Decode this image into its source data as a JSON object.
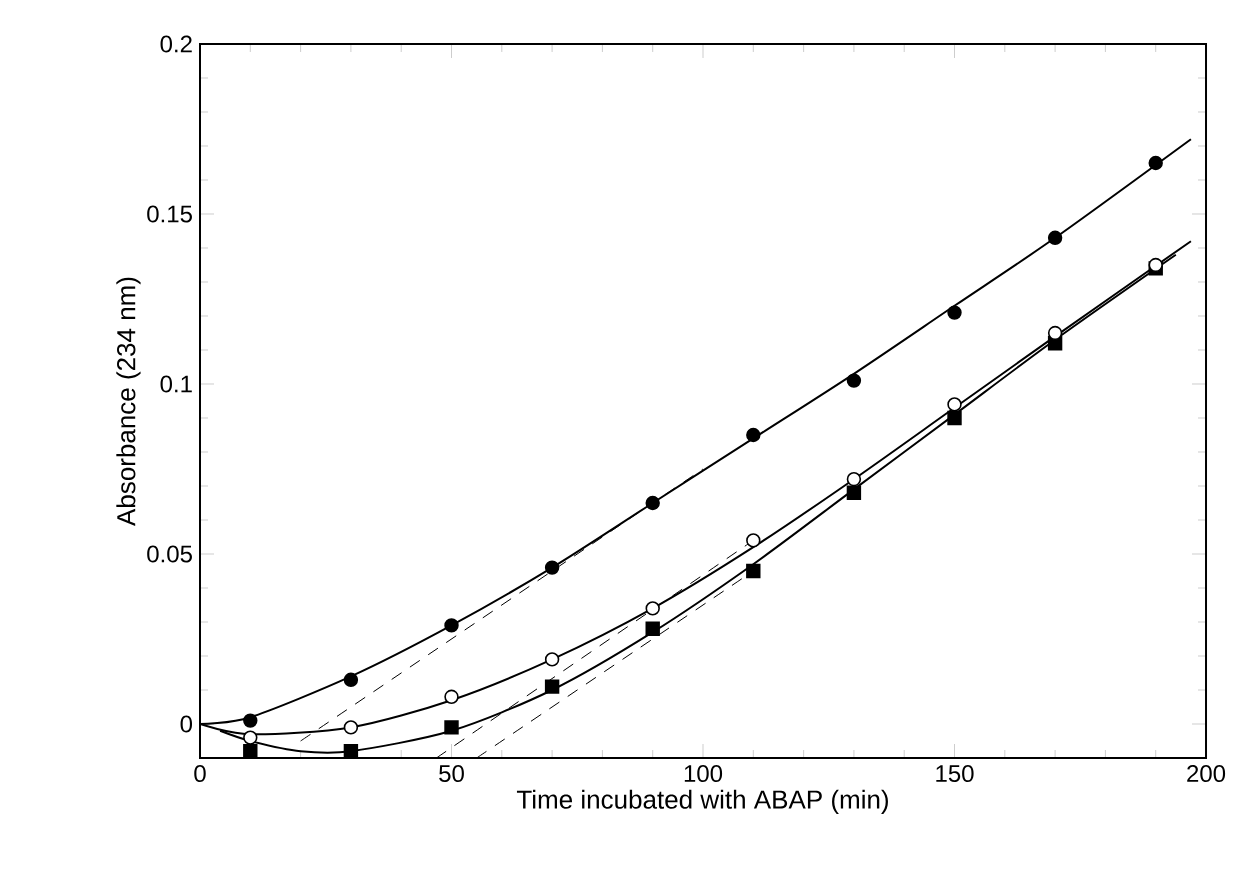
{
  "chart_data": {
    "type": "scatter",
    "xlabel": "Time incubated with ABAP (min)",
    "ylabel": "Absorbance (234 nm)",
    "xlim": [
      0,
      200
    ],
    "ylim": [
      -0.01,
      0.2
    ],
    "xticks": [
      0,
      50,
      100,
      150,
      200
    ],
    "yticks": [
      0,
      0.05,
      0.1,
      0.15,
      0.2
    ],
    "grid": false,
    "series": [
      {
        "marker": "circle",
        "color": "#000000",
        "x": [
          10,
          30,
          50,
          70,
          90,
          110,
          130,
          150,
          170,
          190
        ],
        "values": [
          0.001,
          0.013,
          0.029,
          0.046,
          0.065,
          0.085,
          0.101,
          0.121,
          0.143,
          0.165
        ]
      },
      {
        "marker": "circle",
        "color": "#ffffff",
        "x": [
          10,
          30,
          50,
          70,
          90,
          110,
          130,
          150,
          170,
          190
        ],
        "values": [
          -0.004,
          -0.001,
          0.008,
          0.019,
          0.034,
          0.054,
          0.072,
          0.094,
          0.115,
          0.135
        ]
      },
      {
        "marker": "square",
        "color": "#000000",
        "x": [
          10,
          30,
          50,
          70,
          90,
          110,
          130,
          150,
          170,
          190
        ],
        "values": [
          -0.008,
          -0.008,
          -0.001,
          0.011,
          0.028,
          0.045,
          0.068,
          0.09,
          0.112,
          0.134
        ]
      },
      {
        "type": "line",
        "marker": "none",
        "line_style": "solid",
        "color": "#000000",
        "x": [
          0,
          10,
          30,
          50,
          70,
          90,
          110,
          130,
          150,
          170,
          197
        ],
        "values": [
          0.0,
          0.002,
          0.014,
          0.029,
          0.046,
          0.065,
          0.084,
          0.103,
          0.123,
          0.143,
          0.172
        ]
      },
      {
        "type": "line",
        "marker": "none",
        "line_style": "solid",
        "color": "#000000",
        "x": [
          0,
          10,
          30,
          50,
          70,
          90,
          110,
          130,
          150,
          170,
          197
        ],
        "values": [
          0.0,
          -0.003,
          -0.001,
          0.007,
          0.019,
          0.034,
          0.052,
          0.072,
          0.093,
          0.114,
          0.142
        ]
      },
      {
        "type": "line",
        "marker": "none",
        "line_style": "solid",
        "color": "#000000",
        "x": [
          4,
          10,
          20,
          30,
          50,
          70,
          90,
          110,
          130,
          150,
          170,
          194
        ],
        "values": [
          -0.002,
          -0.005,
          -0.008,
          -0.008,
          -0.002,
          0.01,
          0.027,
          0.047,
          0.069,
          0.091,
          0.113,
          0.138
        ]
      },
      {
        "type": "line",
        "marker": "none",
        "line_style": "dashed",
        "color": "#000000",
        "x": [
          20,
          100
        ],
        "values": [
          -0.005,
          0.075
        ]
      },
      {
        "type": "line",
        "marker": "none",
        "line_style": "dashed",
        "color": "#000000",
        "x": [
          47,
          110
        ],
        "values": [
          -0.01,
          0.054
        ]
      },
      {
        "type": "line",
        "marker": "none",
        "line_style": "dashed",
        "color": "#000000",
        "x": [
          55,
          110
        ],
        "values": [
          -0.01,
          0.045
        ]
      }
    ]
  }
}
